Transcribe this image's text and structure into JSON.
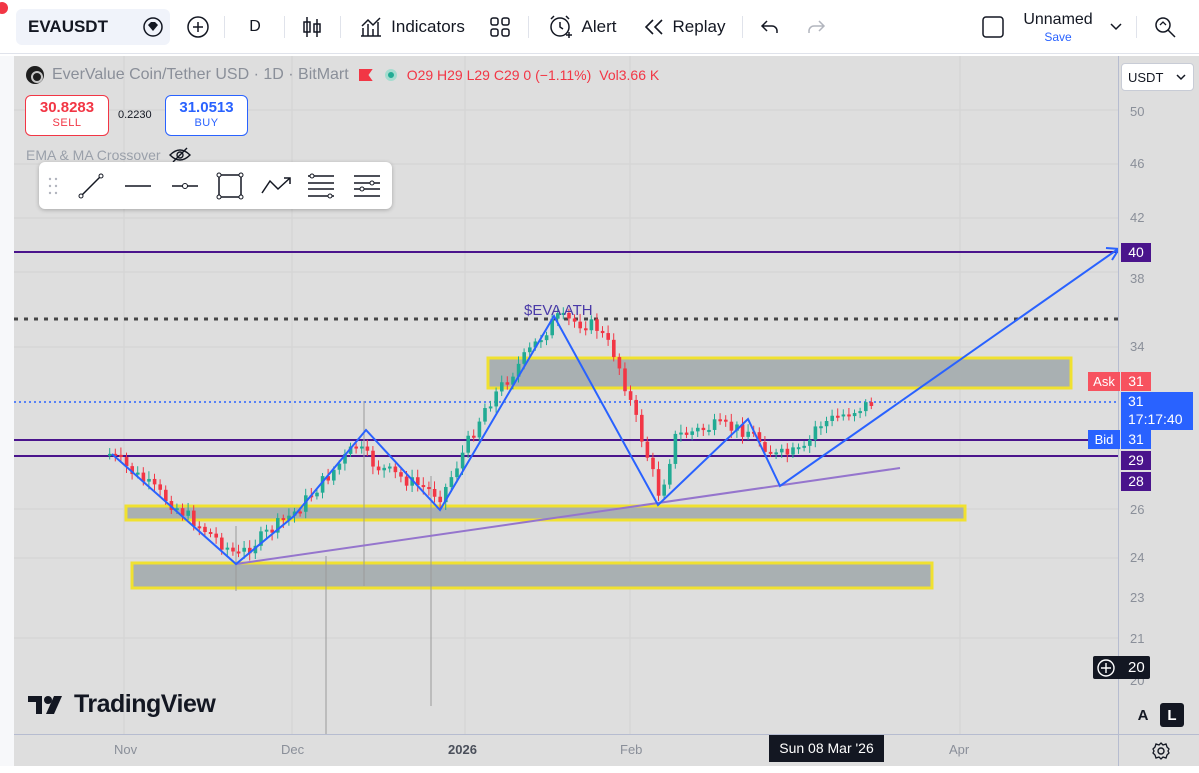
{
  "toolbar": {
    "symbol": "EVAUSDT",
    "interval": "D",
    "indicators_label": "Indicators",
    "alert_label": "Alert",
    "replay_label": "Replay",
    "layout_name": "Unnamed",
    "save_label": "Save"
  },
  "legend": {
    "title": "EverValue Coin/Tether USD · 1D · BitMart",
    "ohlc": "O29 H29 L29 C29 0 (−1.11%)",
    "volume": "Vol3.66 K"
  },
  "trade": {
    "sell_price": "30.8283",
    "sell_label": "SELL",
    "spread": "0.2230",
    "buy_price": "31.0513",
    "buy_label": "BUY"
  },
  "indicator": {
    "name": "EMA & MA Crossover"
  },
  "annotation": {
    "ath_label": "$EVA ATH"
  },
  "watermark": {
    "brand": "TradingView"
  },
  "price_scale": {
    "currency": "USDT",
    "labels": [
      "50",
      "46",
      "42",
      "38",
      "34",
      "26",
      "24",
      "23",
      "21",
      "20"
    ],
    "tags": {
      "target": "40",
      "ask_label": "Ask",
      "ask_value": "31",
      "last_price": "31",
      "countdown": "17:17:40",
      "bid_label": "Bid",
      "bid_value": "31",
      "level_29": "29",
      "level_28": "28",
      "cursor_price": "20"
    }
  },
  "time_scale": {
    "labels": [
      "Nov",
      "Dec",
      "2026",
      "Feb",
      "Apr"
    ],
    "cursor_date": "Sun 08 Mar '26"
  },
  "bottom_buttons": {
    "auto": "A",
    "log": "L"
  },
  "colors": {
    "up": "#22ab94",
    "down": "#f23645",
    "trend_blue": "#2962ff",
    "level_purple": "#4a148c",
    "zone_border": "#f0e130",
    "zone_fill": "#a9b0b2"
  }
}
